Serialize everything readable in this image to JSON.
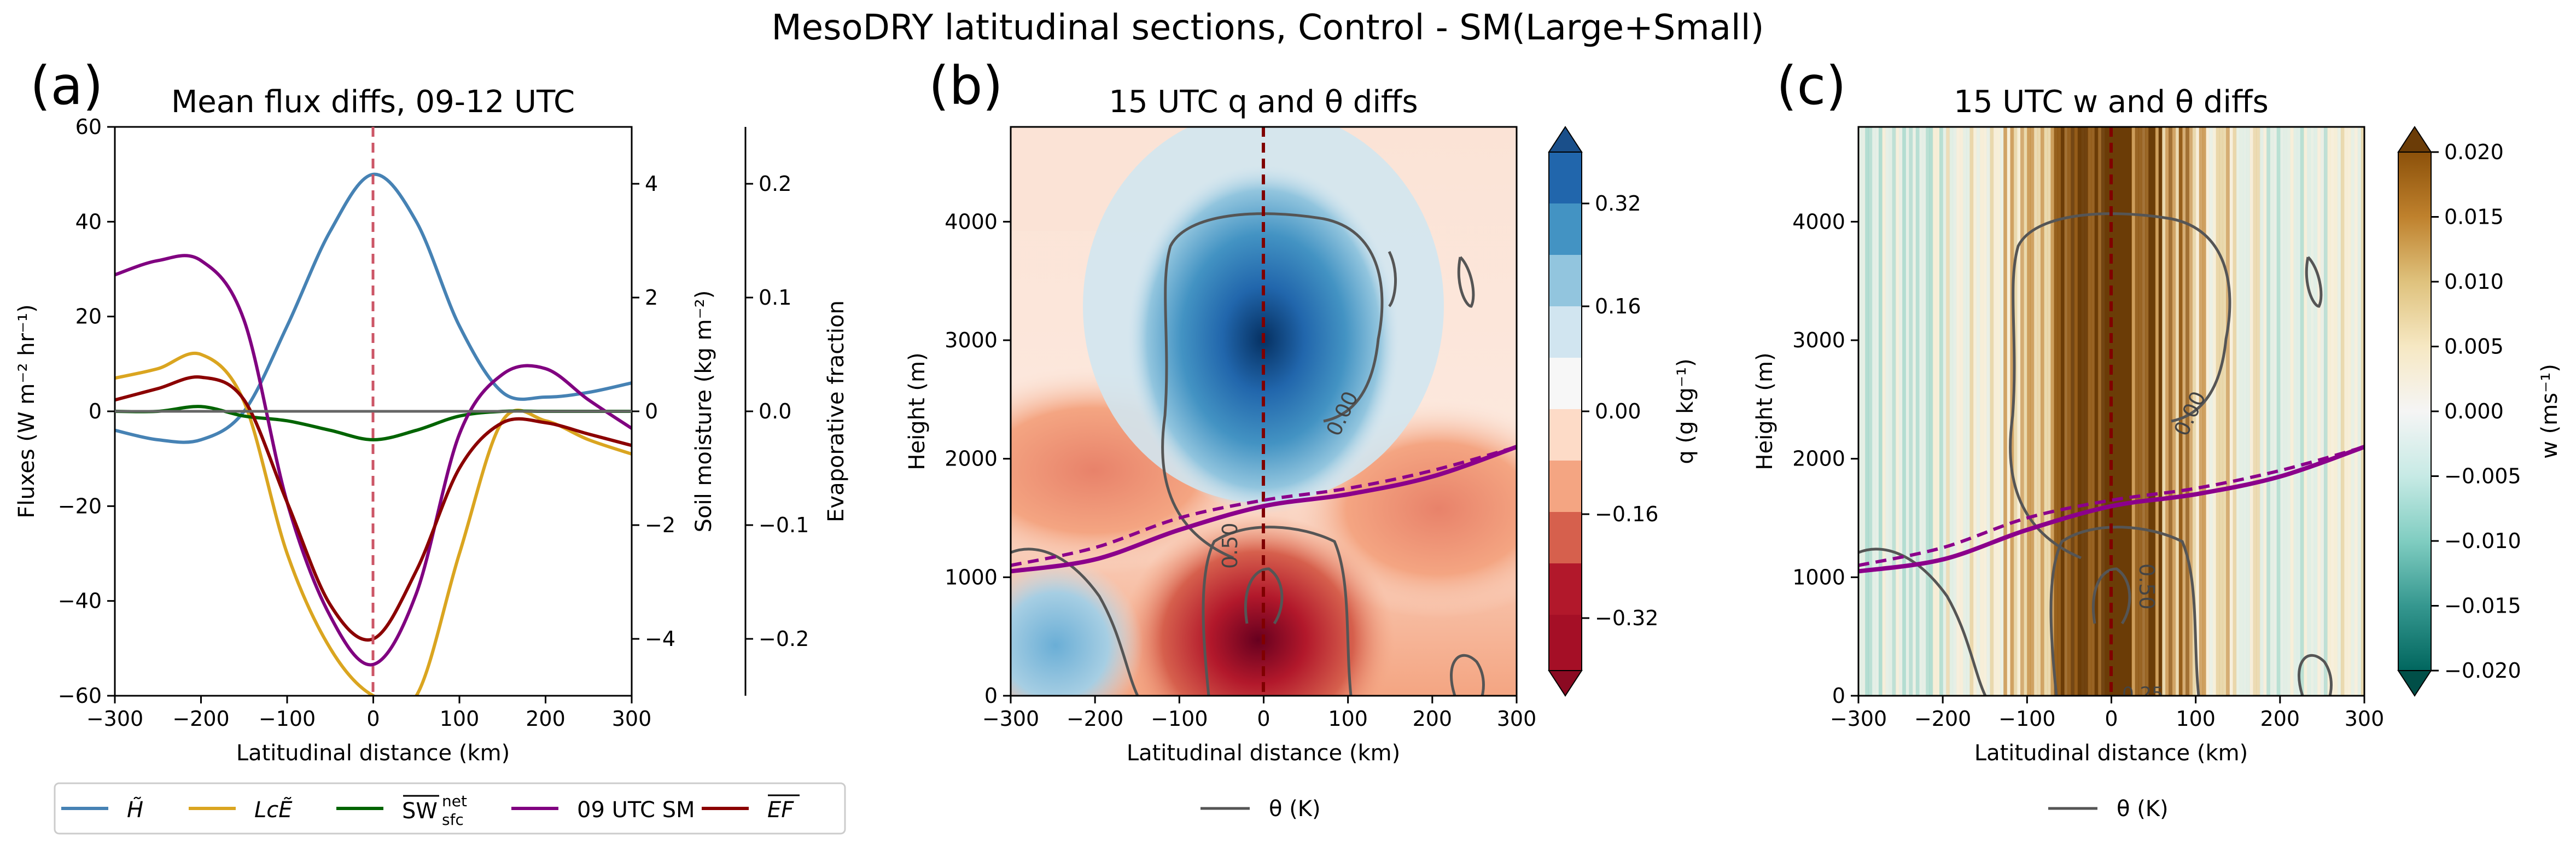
{
  "figure": {
    "suptitle": "MesoDRY latitudinal sections, Control - SM(Large+Small)"
  },
  "colors": {
    "H": "#4682b4",
    "LcE": "#daa520",
    "SW": "#006400",
    "SM": "#800080",
    "EF": "#8b0000",
    "zero_line": "#666666",
    "center_line": "#cc5566",
    "theta": "#555555",
    "boundary": "#8b008b",
    "center_dashed": "#800000"
  },
  "panel_a": {
    "letter": "(a)",
    "title": "Mean flux diffs, 09-12 UTC",
    "xlabel": "Latitudinal distance (km)",
    "ylabel": "Fluxes (W m⁻² hr⁻¹)",
    "ylabel2": "Soil moisture (kg m⁻²)",
    "ylabel3": "Evaporative fraction",
    "xticks": [
      "−300",
      "−200",
      "−100",
      "0",
      "100",
      "200",
      "300"
    ],
    "yticks": [
      "60",
      "40",
      "20",
      "0",
      "−20",
      "−40",
      "−60"
    ],
    "yticks2": [
      "4",
      "2",
      "0",
      "−2",
      "−4"
    ],
    "yticks3": [
      "0.2",
      "0.1",
      "0.0",
      "−0.1",
      "−0.2"
    ],
    "legend": {
      "H": "H̃",
      "LcE": "LᴄẼ",
      "SW": "SW",
      "SW_sup": "net",
      "SW_sub": "sfc",
      "SM": "09 UTC SM",
      "EF": "EF"
    }
  },
  "panel_b": {
    "letter": "(b)",
    "title": "15 UTC q and θ diffs",
    "xlabel": "Latitudinal distance (km)",
    "ylabel": "Height (m)",
    "cbar_label": "q (g kg⁻¹)",
    "cbar_ticks": [
      "0.32",
      "0.16",
      "0.00",
      "−0.16",
      "−0.32"
    ],
    "contour_labels": [
      "0.00",
      "0.50"
    ],
    "legend": "θ (K)",
    "xticks": [
      "−300",
      "−200",
      "−100",
      "0",
      "100",
      "200",
      "300"
    ],
    "yticks": [
      "0",
      "1000",
      "2000",
      "3000",
      "4000"
    ]
  },
  "panel_c": {
    "letter": "(c)",
    "title": "15 UTC w and θ diffs",
    "xlabel": "Latitudinal distance (km)",
    "ylabel": "Height (m)",
    "cbar_label": "w (ms⁻¹)",
    "cbar_ticks": [
      "0.020",
      "0.015",
      "0.010",
      "0.005",
      "0.000",
      "−0.005",
      "−0.010",
      "−0.015",
      "−0.020"
    ],
    "contour_labels": [
      "0.00",
      "0.50",
      "0.25"
    ],
    "legend": "θ (K)",
    "xticks": [
      "−300",
      "−200",
      "−100",
      "0",
      "100",
      "200",
      "300"
    ],
    "yticks": [
      "0",
      "1000",
      "2000",
      "3000",
      "4000"
    ]
  },
  "chart_data": [
    {
      "type": "line",
      "panel": "a",
      "xlim": [
        -300,
        300
      ],
      "ylim": [
        -60,
        60
      ],
      "ylim_soil_moisture": [
        -5,
        5
      ],
      "ylim_evaporative_fraction": [
        -0.25,
        0.25
      ],
      "x": [
        -300,
        -250,
        -200,
        -150,
        -100,
        -50,
        0,
        50,
        100,
        150,
        200,
        250,
        300
      ],
      "series": [
        {
          "key": "H",
          "axis": "flux",
          "values": [
            -4,
            -6,
            -6,
            0,
            18,
            38,
            50,
            40,
            18,
            4,
            3,
            4,
            6
          ]
        },
        {
          "key": "LcE",
          "axis": "flux",
          "values": [
            7,
            9,
            12,
            2,
            -30,
            -50,
            -60,
            -60,
            -30,
            -2,
            -2,
            -6,
            -9
          ]
        },
        {
          "key": "SW",
          "axis": "flux",
          "values": [
            0,
            0,
            1,
            -1,
            -2,
            -4,
            -6,
            -4,
            -1,
            0,
            0,
            0,
            0
          ]
        },
        {
          "key": "SM",
          "axis": "soil_moisture",
          "values": [
            2.4,
            2.65,
            2.65,
            1.6,
            -1.6,
            -3.6,
            -4.45,
            -3.2,
            -0.4,
            0.65,
            0.75,
            0.2,
            -0.3
          ]
        },
        {
          "key": "EF",
          "axis": "evaporative_fraction",
          "values": [
            0.01,
            0.02,
            0.03,
            0.01,
            -0.08,
            -0.17,
            -0.2,
            -0.14,
            -0.05,
            -0.01,
            -0.01,
            -0.02,
            -0.03
          ]
        }
      ]
    },
    {
      "type": "heatmap",
      "panel": "b",
      "field": "q difference",
      "xlim": [
        -300,
        300
      ],
      "ylim": [
        0,
        4800
      ],
      "clim": [
        -0.4,
        0.4
      ],
      "features": [
        {
          "kind": "moist_core",
          "x": 0,
          "y": 2700,
          "value": 0.4
        },
        {
          "kind": "moist_edge",
          "x": 0,
          "y": 3100,
          "value": 0.16
        },
        {
          "kind": "dry_core",
          "x": 0,
          "y": 500,
          "value": -0.4
        },
        {
          "kind": "dry_mid",
          "x": 0,
          "y": 1000,
          "value": -0.24
        },
        {
          "kind": "dry_band",
          "x": -150,
          "y": 1800,
          "value": -0.12
        },
        {
          "kind": "dry_band",
          "x": 170,
          "y": 1500,
          "value": -0.16
        },
        {
          "kind": "moist_corner",
          "x": -250,
          "y": 500,
          "value": 0.12
        }
      ],
      "boundary_solid": {
        "x": [
          -300,
          -200,
          -100,
          0,
          100,
          200,
          300
        ],
        "y": [
          1050,
          1150,
          1400,
          1600,
          1700,
          1850,
          2100
        ]
      },
      "boundary_dashed": {
        "x": [
          -300,
          -200,
          -100,
          0,
          100,
          200,
          300
        ],
        "y": [
          1100,
          1250,
          1500,
          1650,
          1750,
          1900,
          2100
        ]
      }
    },
    {
      "type": "heatmap",
      "panel": "c",
      "field": "w difference",
      "xlim": [
        -300,
        300
      ],
      "ylim": [
        0,
        4800
      ],
      "clim": [
        -0.02,
        0.02
      ],
      "profile_x": [
        -300,
        -200,
        -100,
        -50,
        0,
        50,
        100,
        200,
        300
      ],
      "profile_w": [
        -0.003,
        -0.002,
        0.008,
        0.016,
        0.02,
        0.015,
        0.007,
        -0.001,
        0.002
      ],
      "boundary_solid": {
        "x": [
          -300,
          -200,
          -100,
          0,
          100,
          200,
          300
        ],
        "y": [
          1050,
          1150,
          1400,
          1600,
          1700,
          1850,
          2100
        ]
      },
      "boundary_dashed": {
        "x": [
          -300,
          -200,
          -100,
          0,
          100,
          200,
          300
        ],
        "y": [
          1100,
          1250,
          1500,
          1650,
          1750,
          1900,
          2100
        ]
      }
    }
  ]
}
